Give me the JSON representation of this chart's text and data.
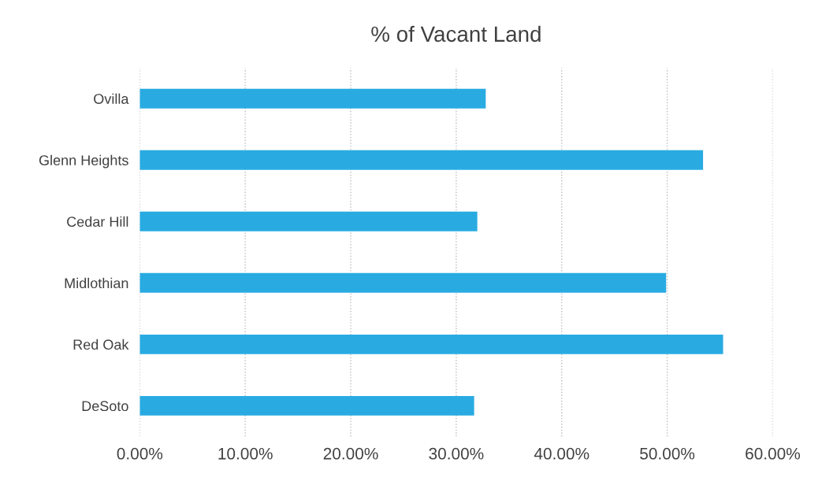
{
  "chart_data": {
    "type": "bar",
    "orientation": "horizontal",
    "title": "% of Vacant Land",
    "categories": [
      "Ovilla",
      "Glenn Heights",
      "Cedar Hill",
      "Midlothian",
      "Red Oak",
      "DeSoto"
    ],
    "values": [
      32.8,
      53.4,
      32.0,
      49.9,
      55.3,
      31.7
    ],
    "color": "#29abe2",
    "xlim": [
      0,
      60
    ],
    "xticks": [
      {
        "value": 0,
        "label": "0.00%"
      },
      {
        "value": 10,
        "label": "10.00%"
      },
      {
        "value": 20,
        "label": "20.00%"
      },
      {
        "value": 30,
        "label": "30.00%"
      },
      {
        "value": 40,
        "label": "40.00%"
      },
      {
        "value": 50,
        "label": "50.00%"
      },
      {
        "value": 60,
        "label": "60.00%"
      }
    ],
    "grid": "x"
  }
}
